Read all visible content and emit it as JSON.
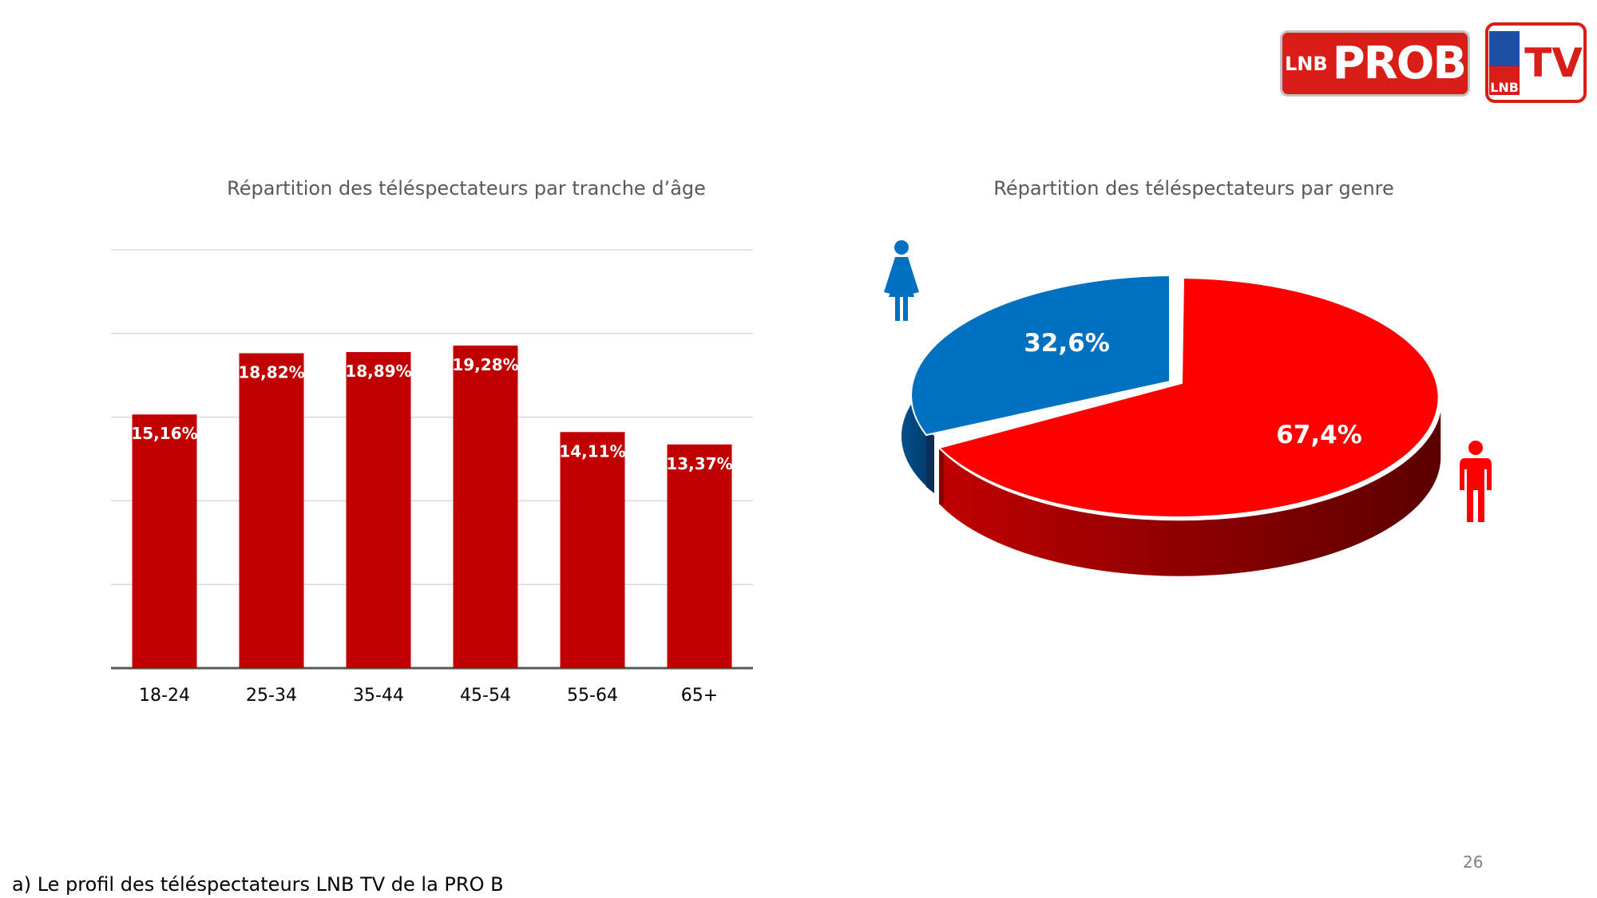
{
  "logos": {
    "left_small": "LNB",
    "left_main": "PROB",
    "right_small": "LNB",
    "right_main": "TV"
  },
  "page_number": "26",
  "footer": "a) Le profil des téléspectateurs LNB TV de la PRO B",
  "colors": {
    "bar": "#c00000",
    "female": "#0070c0",
    "male": "#ff0000",
    "grid": "#d9d9d9",
    "axis": "#595959"
  },
  "icons": {
    "female": "female-person-icon",
    "male": "male-person-icon"
  },
  "chart_data": [
    {
      "type": "bar",
      "title": "Répartition des téléspectateurs par tranche d’âge",
      "categories": [
        "18-24",
        "25-34",
        "35-44",
        "45-54",
        "55-64",
        "65+"
      ],
      "values": [
        15.16,
        18.82,
        18.89,
        19.28,
        14.11,
        13.37
      ],
      "data_labels": [
        "15,16%",
        "18,82%",
        "18,89%",
        "19,28%",
        "14,11%",
        "13,37%"
      ],
      "ylim": [
        0,
        25
      ],
      "grid": true,
      "legend": "none"
    },
    {
      "type": "pie",
      "title": "Répartition des téléspectateurs par genre",
      "values": [
        32.6,
        67.4
      ],
      "data_labels": [
        "32,6%",
        "67,4%"
      ],
      "style": "3d-exploded",
      "legend": "icons"
    }
  ]
}
